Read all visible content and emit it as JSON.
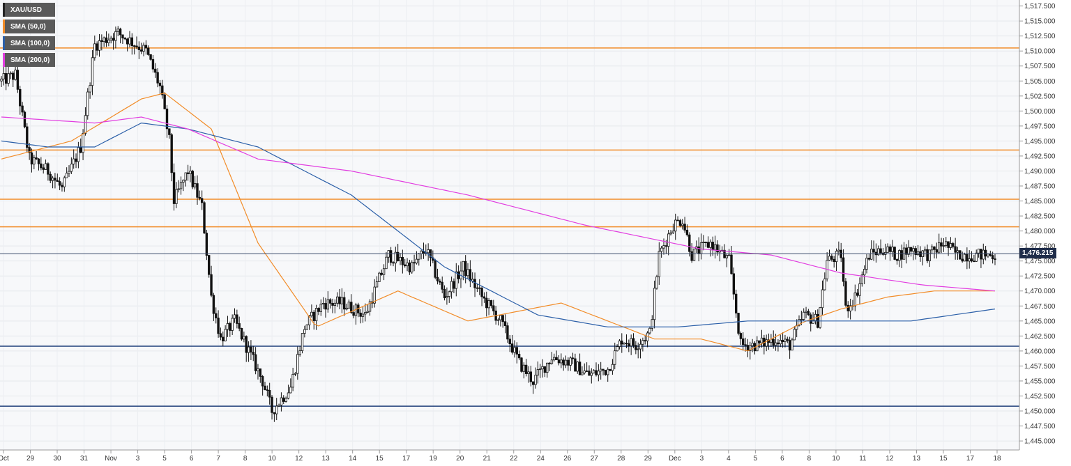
{
  "legend": [
    {
      "label": "XAU/USD",
      "color": "#222222"
    },
    {
      "label": "SMA (50,0)",
      "color": "#f28c28"
    },
    {
      "label": "SMA (100,0)",
      "color": "#2b5fa8"
    },
    {
      "label": "SMA (200,0)",
      "color": "#e23de0"
    }
  ],
  "current_price_label": "1,476.215",
  "chart_data": {
    "type": "candlestick",
    "symbol": "XAU/USD",
    "ylim": [
      1443.5,
      1518.5
    ],
    "y_ticks": [
      1445,
      1447.5,
      1450,
      1452.5,
      1455,
      1457.5,
      1460,
      1462.5,
      1465,
      1467.5,
      1470,
      1472.5,
      1475,
      1477.5,
      1480,
      1482.5,
      1485,
      1487.5,
      1490,
      1492.5,
      1495,
      1497.5,
      1500,
      1502.5,
      1505,
      1507.5,
      1510,
      1512.5,
      1515,
      1517.5
    ],
    "x_ticks": [
      "Oct",
      "29",
      "30",
      "31",
      "Nov",
      "3",
      "5",
      "6",
      "7",
      "8",
      "10",
      "12",
      "13",
      "14",
      "15",
      "17",
      "19",
      "20",
      "21",
      "22",
      "24",
      "26",
      "27",
      "28",
      "29",
      "Dec",
      "3",
      "4",
      "5",
      "6",
      "8",
      "10",
      "11",
      "12",
      "13",
      "15",
      "17",
      "18"
    ],
    "current_price": 1476.215,
    "horizontal_levels": [
      {
        "value": 1510.5,
        "color": "#f28c28"
      },
      {
        "value": 1493.5,
        "color": "#f28c28"
      },
      {
        "value": 1485.3,
        "color": "#f28c28"
      },
      {
        "value": 1480.7,
        "color": "#f28c28"
      },
      {
        "value": 1460.8,
        "color": "#1f3f7a"
      },
      {
        "value": 1450.8,
        "color": "#1f3f7a"
      }
    ],
    "sma50_anchors": [
      [
        0,
        1492
      ],
      [
        30,
        1495
      ],
      [
        60,
        1502
      ],
      [
        70,
        1503
      ],
      [
        90,
        1497
      ],
      [
        110,
        1478
      ],
      [
        135,
        1464
      ],
      [
        170,
        1470
      ],
      [
        200,
        1465
      ],
      [
        240,
        1468
      ],
      [
        260,
        1465
      ],
      [
        280,
        1462
      ],
      [
        300,
        1462
      ],
      [
        320,
        1460
      ],
      [
        345,
        1465
      ],
      [
        360,
        1467
      ],
      [
        380,
        1469
      ],
      [
        400,
        1470
      ],
      [
        426,
        1470
      ]
    ],
    "sma100_anchors": [
      [
        0,
        1495
      ],
      [
        20,
        1494
      ],
      [
        40,
        1494
      ],
      [
        60,
        1498
      ],
      [
        80,
        1497
      ],
      [
        110,
        1494
      ],
      [
        150,
        1486
      ],
      [
        190,
        1474
      ],
      [
        230,
        1466
      ],
      [
        260,
        1464
      ],
      [
        290,
        1464
      ],
      [
        320,
        1465
      ],
      [
        360,
        1465
      ],
      [
        390,
        1465
      ],
      [
        426,
        1467
      ]
    ],
    "sma200_anchors": [
      [
        0,
        1499
      ],
      [
        40,
        1498
      ],
      [
        60,
        1499
      ],
      [
        80,
        1497
      ],
      [
        110,
        1492
      ],
      [
        150,
        1490
      ],
      [
        200,
        1486
      ],
      [
        250,
        1481
      ],
      [
        300,
        1477
      ],
      [
        330,
        1476
      ],
      [
        360,
        1473
      ],
      [
        395,
        1471
      ],
      [
        426,
        1470
      ]
    ],
    "ohlc_anchors": [
      [
        0,
        1505
      ],
      [
        6,
        1506
      ],
      [
        12,
        1492
      ],
      [
        20,
        1490
      ],
      [
        26,
        1487
      ],
      [
        34,
        1494
      ],
      [
        40,
        1511
      ],
      [
        50,
        1513
      ],
      [
        62,
        1510
      ],
      [
        68,
        1504
      ],
      [
        72,
        1495
      ],
      [
        74,
        1485
      ],
      [
        80,
        1490
      ],
      [
        86,
        1484
      ],
      [
        90,
        1469
      ],
      [
        94,
        1462
      ],
      [
        100,
        1465
      ],
      [
        112,
        1455
      ],
      [
        116,
        1450
      ],
      [
        124,
        1454
      ],
      [
        130,
        1464
      ],
      [
        138,
        1468
      ],
      [
        146,
        1468
      ],
      [
        156,
        1466
      ],
      [
        166,
        1476
      ],
      [
        176,
        1474
      ],
      [
        182,
        1477
      ],
      [
        190,
        1469
      ],
      [
        198,
        1474
      ],
      [
        206,
        1469
      ],
      [
        214,
        1465
      ],
      [
        222,
        1458
      ],
      [
        228,
        1455
      ],
      [
        236,
        1459
      ],
      [
        244,
        1458
      ],
      [
        252,
        1456
      ],
      [
        260,
        1457
      ],
      [
        266,
        1462
      ],
      [
        272,
        1461
      ],
      [
        278,
        1463
      ],
      [
        282,
        1476
      ],
      [
        288,
        1481
      ],
      [
        292,
        1482
      ],
      [
        296,
        1476
      ],
      [
        304,
        1478
      ],
      [
        312,
        1475
      ],
      [
        317,
        1461
      ],
      [
        324,
        1461
      ],
      [
        332,
        1462
      ],
      [
        338,
        1461
      ],
      [
        344,
        1466
      ],
      [
        350,
        1465
      ],
      [
        354,
        1475
      ],
      [
        360,
        1476
      ],
      [
        362,
        1467
      ],
      [
        366,
        1469
      ],
      [
        372,
        1476
      ],
      [
        378,
        1477
      ],
      [
        384,
        1476
      ],
      [
        390,
        1477
      ],
      [
        398,
        1476
      ],
      [
        404,
        1478
      ],
      [
        410,
        1476
      ],
      [
        416,
        1476
      ]
    ]
  }
}
